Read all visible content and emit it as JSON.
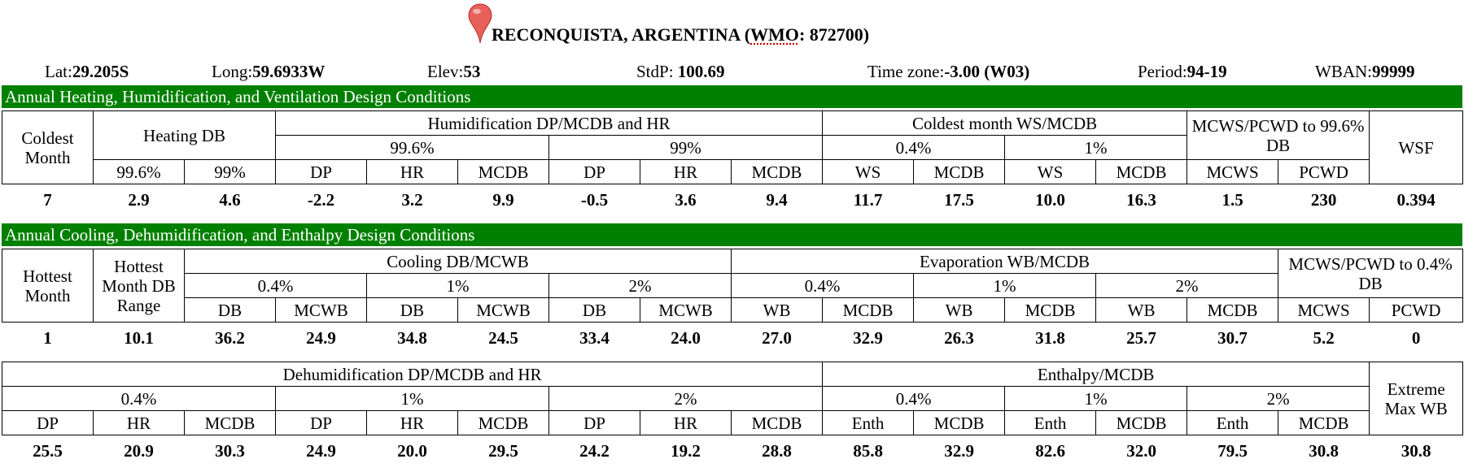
{
  "station": {
    "name": "RECONQUISTA, ARGENTINA",
    "wmo_prefix": "(",
    "wmo_label": "WMO",
    "wmo_value": ": 872700)"
  },
  "info": {
    "lat_label": "Lat:",
    "lat": "29.205S",
    "long_label": "Long:",
    "long": "59.6933W",
    "elev_label": "Elev:",
    "elev": "53",
    "stdp_label": "StdP:",
    "stdp": "100.69",
    "tz_label": "Time zone:",
    "tz": "-3.00 (W03)",
    "period_label": "Period:",
    "period": "94-19",
    "wban_label": "WBAN:",
    "wban": "99999"
  },
  "heating": {
    "section_title": "Annual Heating, Humidification, and Ventilation Design Conditions",
    "coldest_month": "Coldest Month",
    "heating_db": "Heating DB",
    "humid": "Humidification DP/MCDB and HR",
    "coldest_ws": "Coldest month WS/MCDB",
    "mcws_pcwd": "MCWS/PCWD to 99.6% DB",
    "wsf": "WSF",
    "p996": "99.6%",
    "p99": "99%",
    "p04": "0.4%",
    "p1": "1%",
    "cols": [
      "99.6%",
      "99%",
      "DP",
      "HR",
      "MCDB",
      "DP",
      "HR",
      "MCDB",
      "WS",
      "MCDB",
      "WS",
      "MCDB",
      "MCWS",
      "PCWD"
    ],
    "values": [
      "7",
      "2.9",
      "4.6",
      "-2.2",
      "3.2",
      "9.9",
      "-0.5",
      "3.6",
      "9.4",
      "11.7",
      "17.5",
      "10.0",
      "16.3",
      "1.5",
      "230",
      "0.394"
    ]
  },
  "cooling": {
    "section_title": "Annual Cooling, Dehumidification, and Enthalpy Design Conditions",
    "hottest_month": "Hottest Month",
    "hottest_range": "Hottest Month DB Range",
    "cooling_db": "Cooling DB/MCWB",
    "evap": "Evaporation WB/MCDB",
    "mcws_pcwd": "MCWS/PCWD to 0.4% DB",
    "p04": "0.4%",
    "p1": "1%",
    "p2": "2%",
    "cols": [
      "DB",
      "MCWB",
      "DB",
      "MCWB",
      "DB",
      "MCWB",
      "WB",
      "MCDB",
      "WB",
      "MCDB",
      "WB",
      "MCDB",
      "MCWS",
      "PCWD"
    ],
    "values": [
      "1",
      "10.1",
      "36.2",
      "24.9",
      "34.8",
      "24.5",
      "33.4",
      "24.0",
      "27.0",
      "32.9",
      "26.3",
      "31.8",
      "25.7",
      "30.7",
      "5.2",
      "0"
    ]
  },
  "dehum": {
    "dehum_title": "Dehumidification DP/MCDB and HR",
    "enthalpy_title": "Enthalpy/MCDB",
    "extreme": "Extreme Max WB",
    "p04": "0.4%",
    "p1": "1%",
    "p2": "2%",
    "cols": [
      "DP",
      "HR",
      "MCDB",
      "DP",
      "HR",
      "MCDB",
      "DP",
      "HR",
      "MCDB",
      "Enth",
      "MCDB",
      "Enth",
      "MCDB",
      "Enth",
      "MCDB"
    ],
    "values": [
      "25.5",
      "20.9",
      "30.3",
      "24.9",
      "20.0",
      "29.5",
      "24.2",
      "19.2",
      "28.8",
      "85.8",
      "32.9",
      "82.6",
      "32.0",
      "79.5",
      "30.8",
      "30.8"
    ]
  }
}
